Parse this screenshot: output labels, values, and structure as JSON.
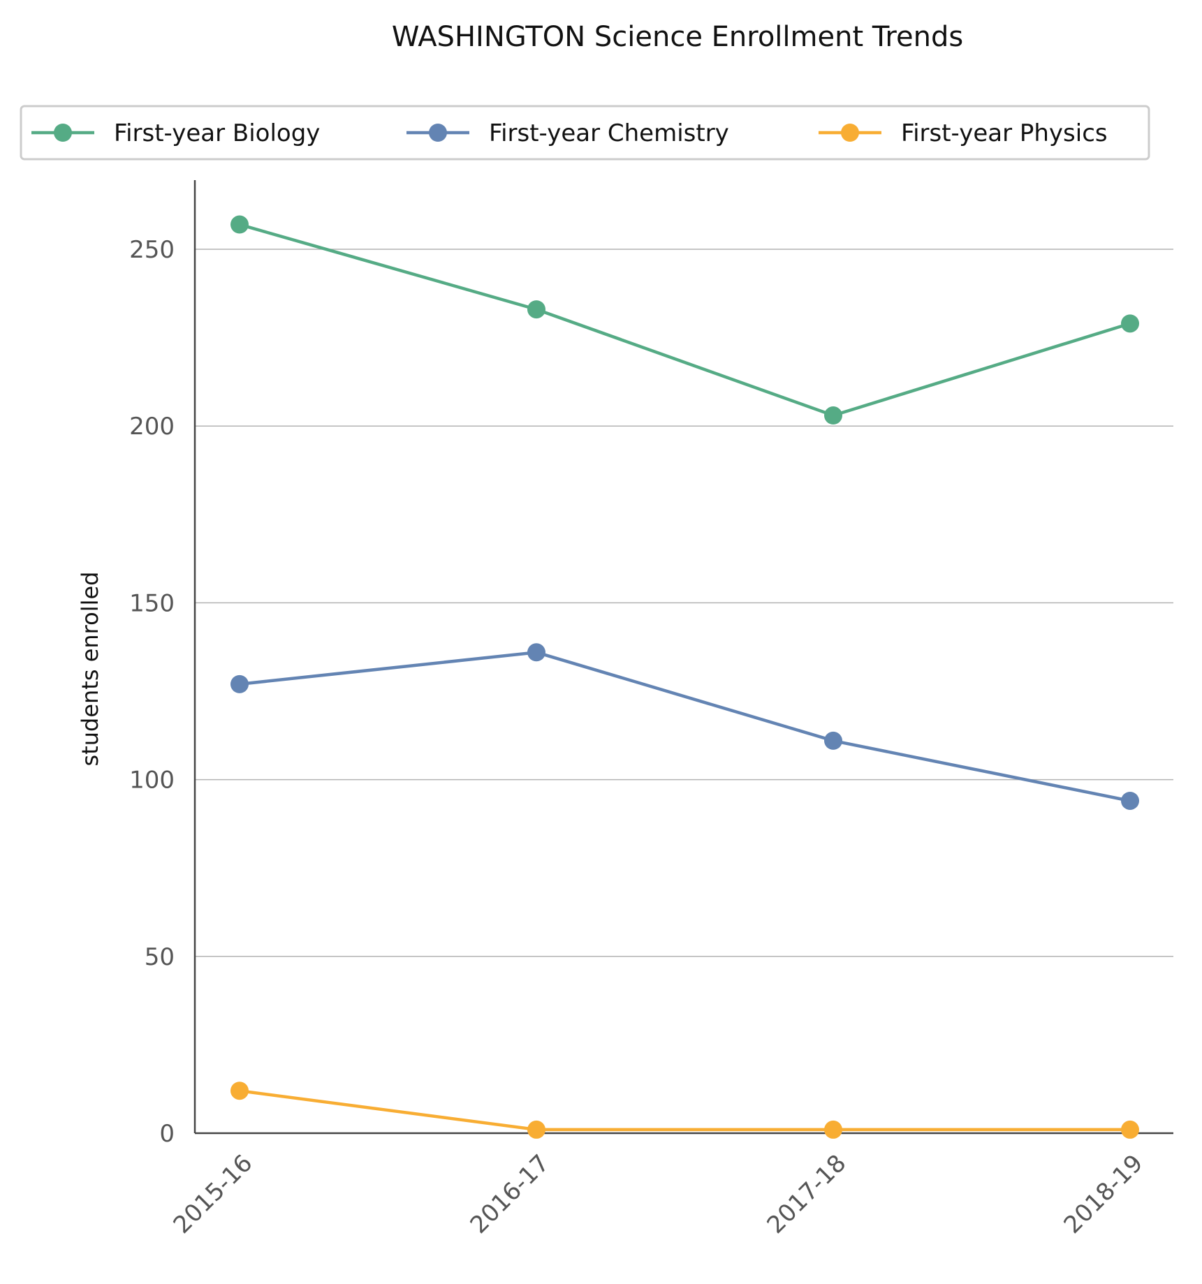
{
  "chart_data": {
    "type": "line",
    "title": "WASHINGTON Science Enrollment Trends",
    "xlabel": "",
    "ylabel": "students enrolled",
    "categories": [
      "2015-16",
      "2016-17",
      "2017-18",
      "2018-19"
    ],
    "ylim": [
      0,
      270
    ],
    "yticks": [
      0,
      50,
      100,
      150,
      200,
      250
    ],
    "grid": "horizontal",
    "legend_position": "top",
    "series": [
      {
        "name": "First-year Biology",
        "color": "#55ab85",
        "values": [
          257,
          233,
          203,
          229
        ]
      },
      {
        "name": "First-year Chemistry",
        "color": "#6384b3",
        "values": [
          127,
          136,
          111,
          94
        ]
      },
      {
        "name": "First-year Physics",
        "color": "#f8ad33",
        "values": [
          12,
          1,
          1,
          1
        ]
      }
    ]
  }
}
